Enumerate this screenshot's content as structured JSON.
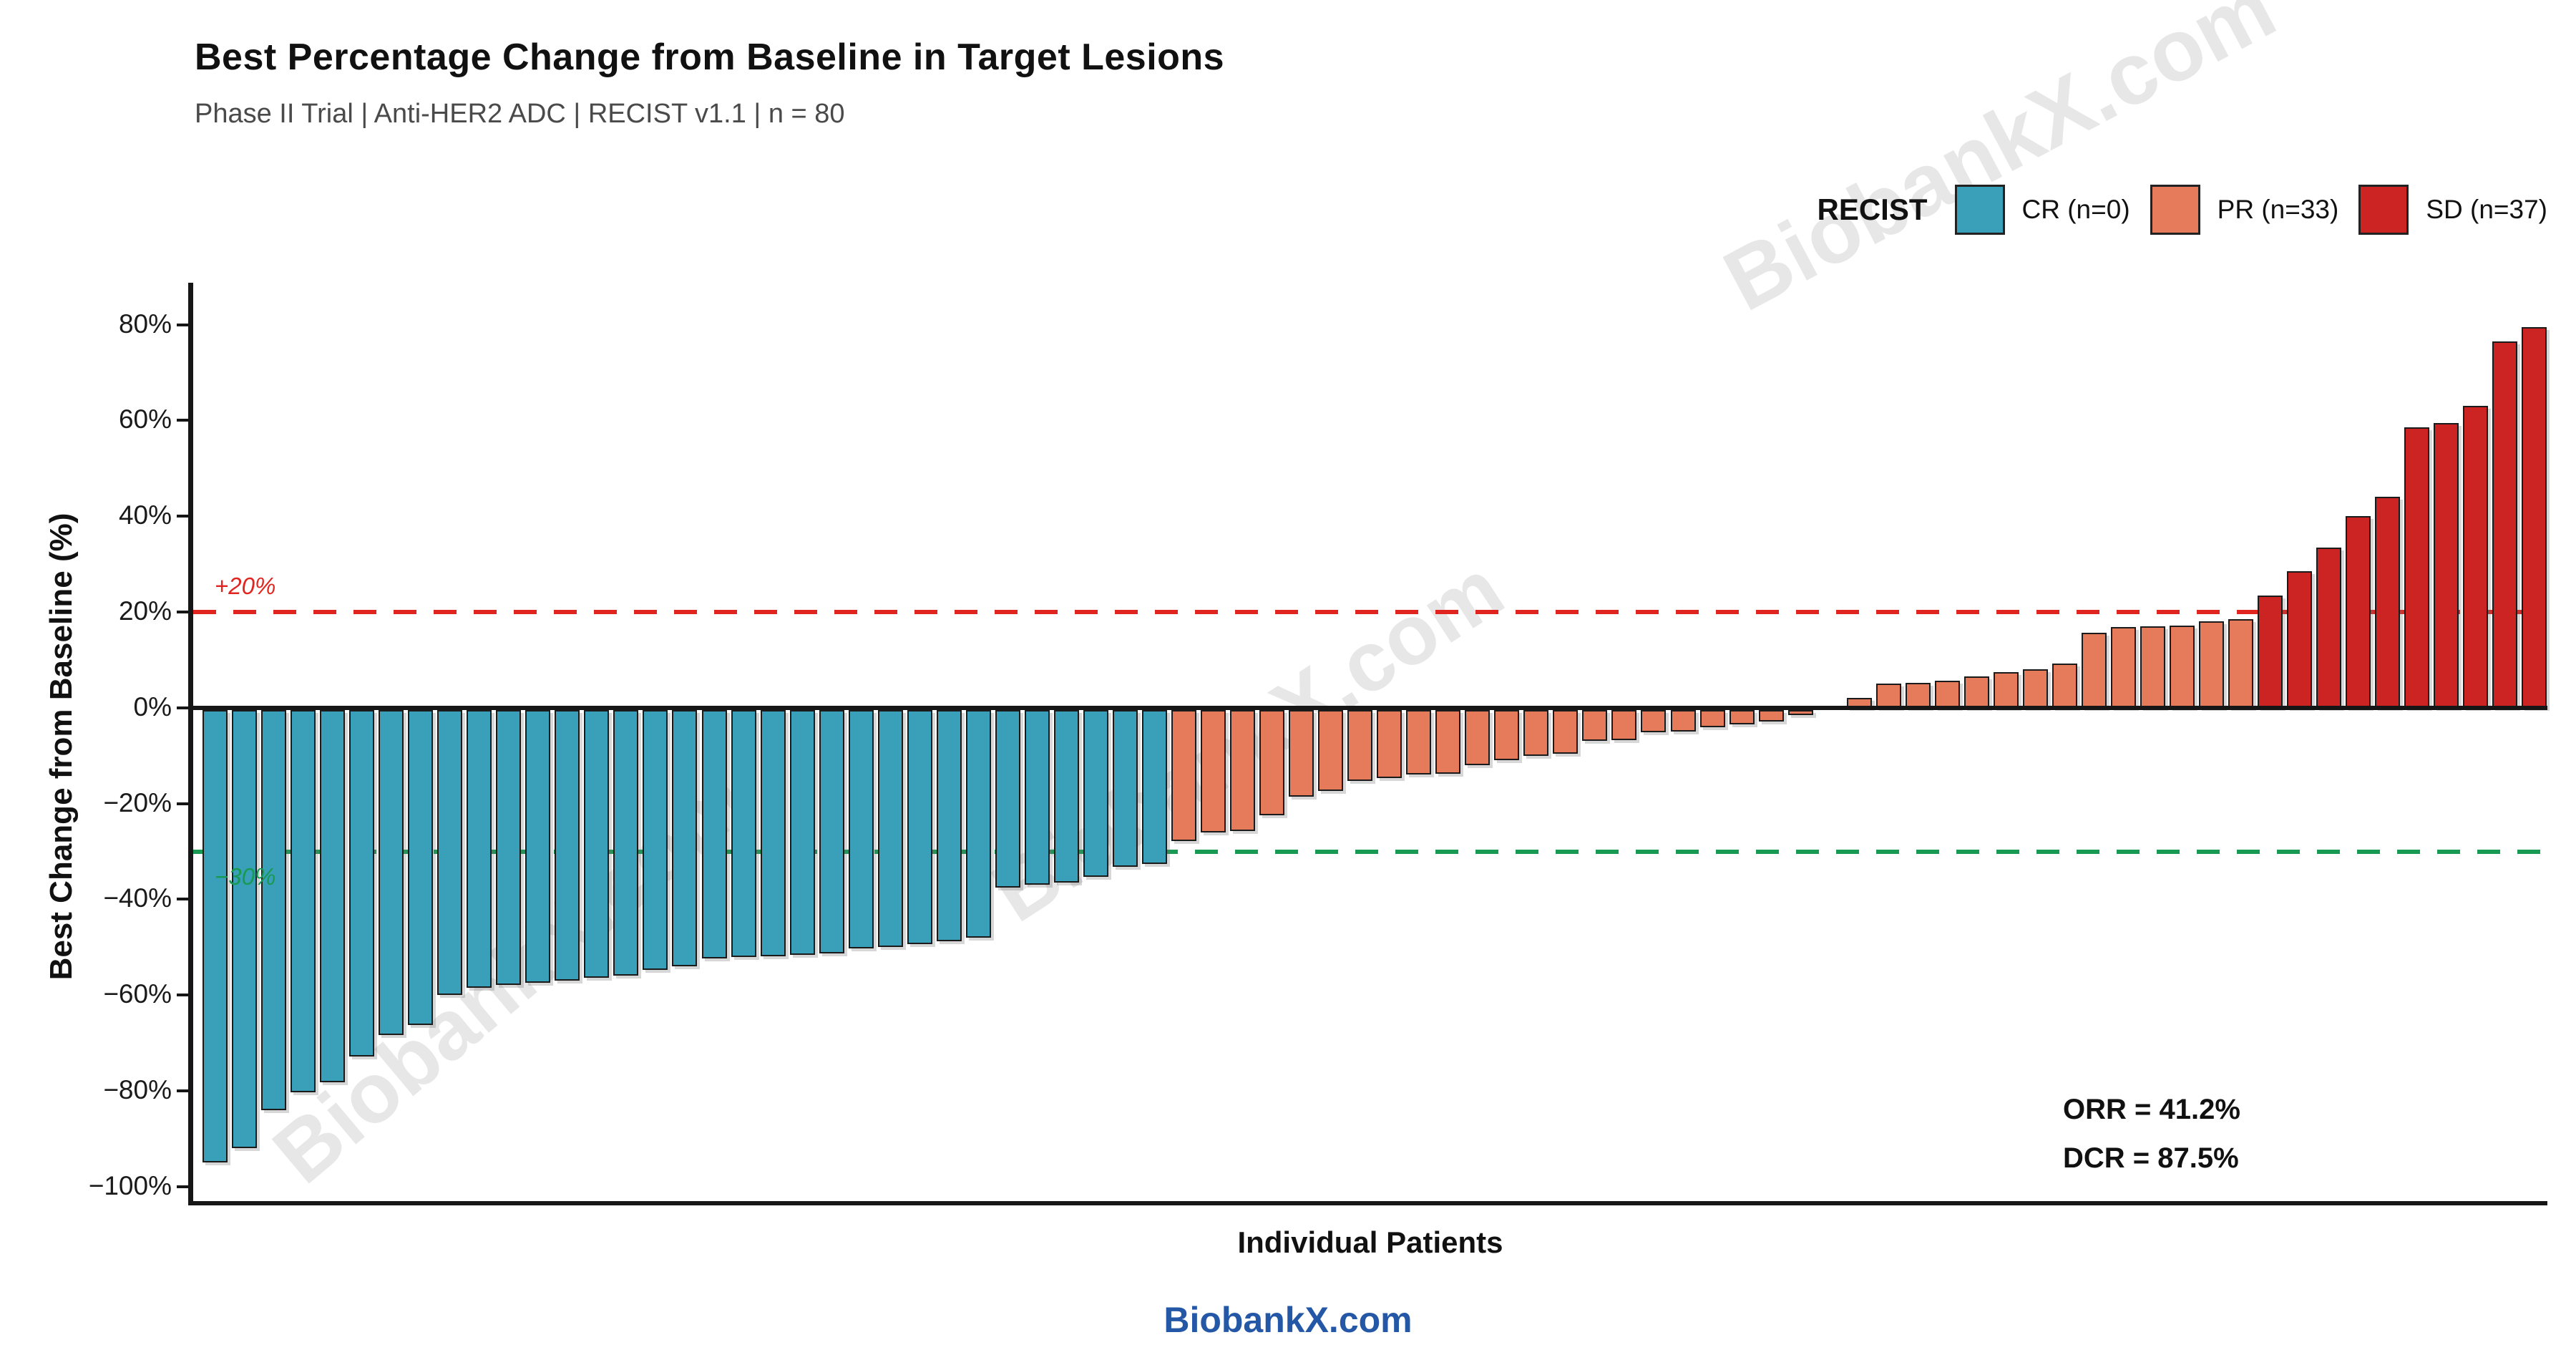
{
  "header": {
    "title": "Best Percentage Change from Baseline in Target Lesions",
    "subtitle": "Phase II Trial | Anti-HER2 ADC | RECIST v1.1 | n = 80"
  },
  "legend": {
    "title": "RECIST",
    "items": [
      {
        "label": "CR (n=0)",
        "color": "#3A9FB9"
      },
      {
        "label": "PR (n=33)",
        "color": "#E67B5B"
      },
      {
        "label": "SD (n=37)",
        "color": "#CC2422"
      }
    ]
  },
  "chart_data": {
    "type": "bar",
    "title": "Best Percentage Change from Baseline in Target Lesions",
    "xlabel": "Individual Patients",
    "ylabel": "Best Change from Baseline (%)",
    "ylim": [
      -103,
      88
    ],
    "grid": false,
    "legend_position": "top-right",
    "yticks": [
      {
        "value": 80,
        "label": "80%"
      },
      {
        "value": 60,
        "label": "60%"
      },
      {
        "value": 40,
        "label": "40%"
      },
      {
        "value": 20,
        "label": "20%"
      },
      {
        "value": 0,
        "label": "0%"
      },
      {
        "value": -20,
        "label": "−20%"
      },
      {
        "value": -40,
        "label": "−40%"
      },
      {
        "value": -60,
        "label": "−60%"
      },
      {
        "value": -80,
        "label": "−80%"
      },
      {
        "value": -100,
        "label": "−100%"
      }
    ],
    "reference_lines": [
      {
        "value": 20,
        "label": "+20%",
        "color": "#E02420",
        "style": "dashed"
      },
      {
        "value": -30,
        "label": "−30%",
        "color": "#189A52",
        "style": "dashed"
      }
    ],
    "series": [
      {
        "name": "teal-group",
        "color": "#3A9FB9",
        "values": [
          -95,
          -92,
          -84,
          -80.3,
          -78.2,
          -72.8,
          -68.3,
          -66.2,
          -60,
          -58.5,
          -57.9,
          -57.4,
          -56.9,
          -56.4,
          -55.9,
          -54.7,
          -54,
          -52.3,
          -52.1,
          -51.9,
          -51.6,
          -51.3,
          -50.2,
          -49.9,
          -49.4,
          -48.7,
          -48,
          -37.5,
          -36.9,
          -36.5,
          -35.3,
          -33.2,
          -32.6
        ]
      },
      {
        "name": "salmon-group",
        "color": "#E67B5B",
        "values": [
          -27.9,
          -26,
          -25.7,
          -22.5,
          -18.5,
          -17.4,
          -15.3,
          -14.6,
          -13.9,
          -13.8,
          -12,
          -11,
          -10.1,
          -9.6,
          -6.9,
          -6.8,
          -5.1,
          -4.9,
          -4.1,
          -3.5,
          -2.8,
          -1.5,
          0,
          2,
          5,
          5.2,
          5.6,
          6.6,
          7.4,
          8.1,
          9.3,
          15.6,
          16.9,
          17,
          17.2,
          18,
          18.5
        ]
      },
      {
        "name": "red-group",
        "color": "#CC2422",
        "values": [
          23.5,
          28.5,
          33.5,
          40,
          44,
          58.5,
          59.5,
          63,
          76.5,
          79.5
        ]
      }
    ]
  },
  "annotations": {
    "orr": "ORR = 41.2%",
    "dcr": "DCR = 87.5%"
  },
  "watermark": {
    "text": "BiobankX.com",
    "color": "#E7E7E7"
  },
  "footer": {
    "text": "BiobankX.com",
    "color": "#2458A6"
  }
}
